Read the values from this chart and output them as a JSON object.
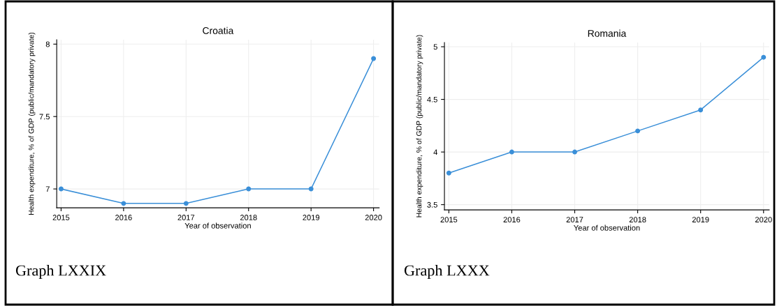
{
  "chart_data": [
    {
      "type": "line",
      "title": "Croatia",
      "xlabel": "Year of observation",
      "ylabel": "Health expenditure, % of GDP (public/mandatory private)",
      "x": [
        2015,
        2016,
        2017,
        2018,
        2019,
        2020
      ],
      "series": [
        {
          "color": "#3a8fd8",
          "values": [
            7.0,
            6.9,
            6.9,
            7.0,
            7.0,
            7.9
          ]
        }
      ],
      "xlim": [
        2014.93,
        2020.09
      ],
      "xticks": [
        2015,
        2016,
        2017,
        2018,
        2019,
        2020
      ],
      "ylim": [
        6.87,
        8.03
      ],
      "yticks": [
        7,
        7.5,
        8
      ],
      "grid": true,
      "marker": "circle",
      "line_style": "solid",
      "annotations": [
        "Graph LXXIX"
      ]
    },
    {
      "type": "line",
      "title": "Romania",
      "xlabel": "Year of observation",
      "ylabel": "Health expenditure, % of GDP (public/mandatory private)",
      "x": [
        2015,
        2016,
        2017,
        2018,
        2019,
        2020
      ],
      "series": [
        {
          "color": "#3a8fd8",
          "values": [
            3.8,
            4.0,
            4.0,
            4.2,
            4.4,
            4.9
          ]
        }
      ],
      "xlim": [
        2014.93,
        2020.09
      ],
      "xticks": [
        2015,
        2016,
        2017,
        2018,
        2019,
        2020
      ],
      "ylim": [
        3.45,
        5.04
      ],
      "yticks": [
        3.5,
        4,
        4.5,
        5
      ],
      "grid": true,
      "marker": "circle",
      "line_style": "solid",
      "annotations": [
        "Graph LXXX"
      ]
    }
  ]
}
